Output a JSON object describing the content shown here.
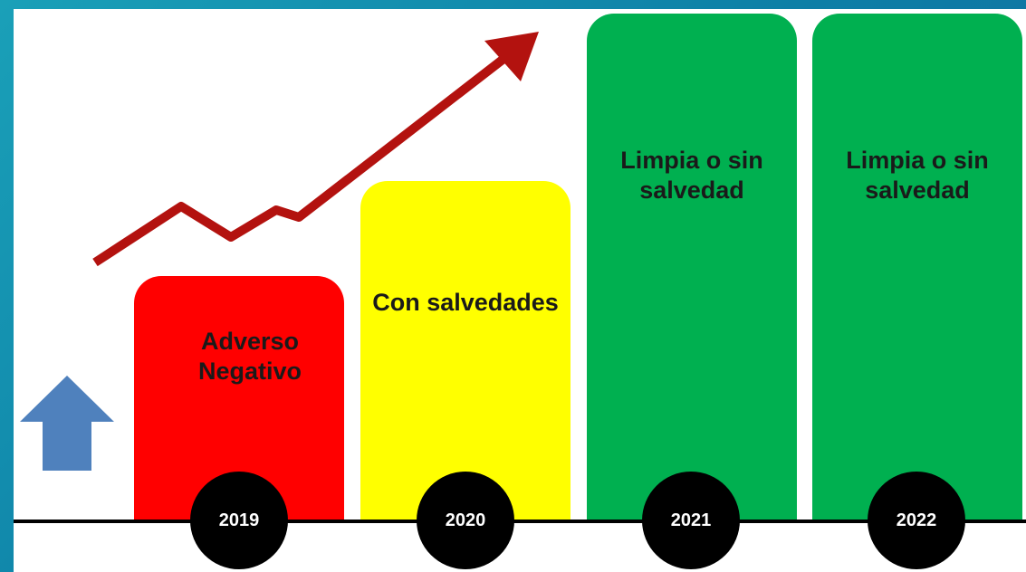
{
  "stages": [
    {
      "year": "2019",
      "label": "Adverso Negativo"
    },
    {
      "year": "2020",
      "label": "Con salvedades"
    },
    {
      "year": "2021",
      "label": "Limpia o sin salvedad"
    },
    {
      "year": "2022",
      "label": "Limpia o sin salvedad"
    }
  ]
}
